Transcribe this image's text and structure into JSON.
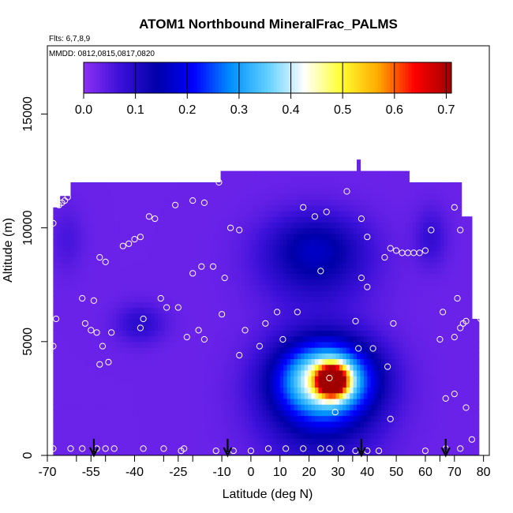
{
  "chart_data": {
    "type": "heatmap",
    "title": "ATOM1 Northbound MineralFrac_PALMS",
    "subtitle": "Flts: 6,7,8,9",
    "annotation": "MMDD: 0812,0815,0817,0820",
    "xlabel": "Latitude (deg N)",
    "ylabel": "Altitude (m)",
    "xlim": [
      -70,
      82
    ],
    "ylim": [
      0,
      18000
    ],
    "x_ticks": [
      "-70",
      "-55",
      "-40",
      "-25",
      "-10",
      "0",
      "10",
      "20",
      "30",
      "40",
      "50",
      "60",
      "70",
      "80"
    ],
    "x_tick_values": [
      -70,
      -55,
      -40,
      -25,
      -10,
      0,
      10,
      20,
      30,
      40,
      50,
      60,
      70,
      80
    ],
    "x_minor_ticks": [
      -60,
      -50,
      -30,
      -20,
      35,
      65
    ],
    "y_ticks": [
      "0",
      "5000",
      "10000",
      "15000"
    ],
    "y_tick_values": [
      0,
      5000,
      10000,
      15000
    ],
    "colorbar": {
      "ticks": [
        "0.0",
        "0.1",
        "0.2",
        "0.3",
        "0.4",
        "0.5",
        "0.6",
        "0.7"
      ],
      "tick_values": [
        0,
        0.1,
        0.2,
        0.3,
        0.4,
        0.5,
        0.6,
        0.7
      ],
      "min": 0,
      "max": 0.71,
      "stops": [
        "#8e30f5",
        "#3a10d8",
        "#0000a8",
        "#0000ff",
        "#0090ff",
        "#60d0ff",
        "#ffffff",
        "#ffff30",
        "#ffaa00",
        "#ff0000",
        "#a00000"
      ]
    },
    "field": {
      "background_value": 0.03,
      "coverage_ceiling": [
        {
          "x": -68,
          "y": 0
        },
        {
          "x": -68,
          "y": 10900
        },
        {
          "x": -66,
          "y": 10900
        },
        {
          "x": -66,
          "y": 11400
        },
        {
          "x": -62,
          "y": 11400
        },
        {
          "x": -62,
          "y": 12000
        },
        {
          "x": -10,
          "y": 12000
        },
        {
          "x": -10,
          "y": 12500
        },
        {
          "x": 37,
          "y": 12500
        },
        {
          "x": 37,
          "y": 13000
        },
        {
          "x": 38,
          "y": 13000
        },
        {
          "x": 38,
          "y": 12500
        },
        {
          "x": 55,
          "y": 12500
        },
        {
          "x": 55,
          "y": 12000
        },
        {
          "x": 73,
          "y": 12000
        },
        {
          "x": 73,
          "y": 10500
        },
        {
          "x": 76,
          "y": 10500
        },
        {
          "x": 76,
          "y": 6000
        },
        {
          "x": 79,
          "y": 6000
        },
        {
          "x": 79,
          "y": 500
        },
        {
          "x": 73,
          "y": 500
        },
        {
          "x": 73,
          "y": 0
        }
      ],
      "blobs": [
        {
          "x": 28,
          "y": 3300,
          "sx": 3.5,
          "sy": 450,
          "v": 0.62
        },
        {
          "x": 26,
          "y": 3400,
          "sx": 11,
          "sy": 1100,
          "v": 0.32
        },
        {
          "x": 24,
          "y": 2500,
          "sx": 14,
          "sy": 1900,
          "v": 0.14
        },
        {
          "x": 22,
          "y": 8500,
          "sx": 13,
          "sy": 1300,
          "v": 0.1
        },
        {
          "x": 22,
          "y": 9500,
          "sx": 11,
          "sy": 900,
          "v": 0.05
        },
        {
          "x": -38,
          "y": 5800,
          "sx": 6,
          "sy": 600,
          "v": 0.06
        },
        {
          "x": 62,
          "y": 9600,
          "sx": 4,
          "sy": 900,
          "v": 0.05
        },
        {
          "x": -63,
          "y": 9500,
          "sx": 4,
          "sy": 1000,
          "v": 0.03
        }
      ]
    },
    "flight_track_points": [
      {
        "x": -66,
        "y": 11000
      },
      {
        "x": -65,
        "y": 11100
      },
      {
        "x": -64,
        "y": 11200
      },
      {
        "x": -63,
        "y": 11350
      },
      {
        "x": -68,
        "y": 10200
      },
      {
        "x": -67,
        "y": 6000
      },
      {
        "x": -68,
        "y": 4800
      },
      {
        "x": -57,
        "y": 5800
      },
      {
        "x": -58,
        "y": 6900
      },
      {
        "x": -54,
        "y": 6800
      },
      {
        "x": -52,
        "y": 8700
      },
      {
        "x": -50,
        "y": 8500
      },
      {
        "x": -48,
        "y": 5400
      },
      {
        "x": -51,
        "y": 4800
      },
      {
        "x": -52,
        "y": 4000
      },
      {
        "x": -49,
        "y": 4100
      },
      {
        "x": -55,
        "y": 5500
      },
      {
        "x": -53,
        "y": 5400
      },
      {
        "x": -44,
        "y": 9200
      },
      {
        "x": -42,
        "y": 9300
      },
      {
        "x": -40,
        "y": 9500
      },
      {
        "x": -38,
        "y": 9600
      },
      {
        "x": -35,
        "y": 10500
      },
      {
        "x": -33,
        "y": 10400
      },
      {
        "x": -26,
        "y": 11000
      },
      {
        "x": -20,
        "y": 11200
      },
      {
        "x": -16,
        "y": 11100
      },
      {
        "x": -11,
        "y": 12000
      },
      {
        "x": -7,
        "y": 10000
      },
      {
        "x": -4,
        "y": 9900
      },
      {
        "x": -20,
        "y": 8000
      },
      {
        "x": -17,
        "y": 8300
      },
      {
        "x": -13,
        "y": 8300
      },
      {
        "x": -9,
        "y": 7800
      },
      {
        "x": -31,
        "y": 6900
      },
      {
        "x": -29,
        "y": 6500
      },
      {
        "x": -25,
        "y": 6500
      },
      {
        "x": -37,
        "y": 6000
      },
      {
        "x": -38,
        "y": 5600
      },
      {
        "x": -18,
        "y": 5500
      },
      {
        "x": -16,
        "y": 5100
      },
      {
        "x": -10,
        "y": 6200
      },
      {
        "x": -22,
        "y": 5200
      },
      {
        "x": -2,
        "y": 5500
      },
      {
        "x": 5,
        "y": 5800
      },
      {
        "x": 3,
        "y": 4800
      },
      {
        "x": 11,
        "y": 5100
      },
      {
        "x": -4,
        "y": 4400
      },
      {
        "x": 9,
        "y": 6300
      },
      {
        "x": 16,
        "y": 6300
      },
      {
        "x": 22,
        "y": 10500
      },
      {
        "x": 26,
        "y": 10700
      },
      {
        "x": 18,
        "y": 10900
      },
      {
        "x": 33,
        "y": 11600
      },
      {
        "x": 38,
        "y": 10400
      },
      {
        "x": 40,
        "y": 9600
      },
      {
        "x": 24,
        "y": 8100
      },
      {
        "x": 38,
        "y": 7800
      },
      {
        "x": 40,
        "y": 7400
      },
      {
        "x": 46,
        "y": 8700
      },
      {
        "x": 48,
        "y": 9100
      },
      {
        "x": 50,
        "y": 9000
      },
      {
        "x": 52,
        "y": 8900
      },
      {
        "x": 54,
        "y": 8900
      },
      {
        "x": 56,
        "y": 8900
      },
      {
        "x": 58,
        "y": 8900
      },
      {
        "x": 60,
        "y": 9000
      },
      {
        "x": 62,
        "y": 9900
      },
      {
        "x": 72,
        "y": 9900
      },
      {
        "x": 70,
        "y": 10900
      },
      {
        "x": 74,
        "y": 11800
      },
      {
        "x": 78,
        "y": 10100
      },
      {
        "x": 71,
        "y": 6900
      },
      {
        "x": 66,
        "y": 6300
      },
      {
        "x": 78,
        "y": 6400
      },
      {
        "x": 79,
        "y": 6000
      },
      {
        "x": 73,
        "y": 5800
      },
      {
        "x": 72,
        "y": 5600
      },
      {
        "x": 74,
        "y": 5900
      },
      {
        "x": 70,
        "y": 5200
      },
      {
        "x": 65,
        "y": 5100
      },
      {
        "x": 49,
        "y": 5800
      },
      {
        "x": 36,
        "y": 5900
      },
      {
        "x": 37,
        "y": 4700
      },
      {
        "x": 42,
        "y": 4700
      },
      {
        "x": 47,
        "y": 3900
      },
      {
        "x": 27,
        "y": 3400
      },
      {
        "x": 29,
        "y": 1900
      },
      {
        "x": 48,
        "y": 1600
      },
      {
        "x": 67,
        "y": 2500
      },
      {
        "x": 70,
        "y": 2700
      },
      {
        "x": 74,
        "y": 2100
      },
      {
        "x": 76,
        "y": 700
      },
      {
        "x": 80,
        "y": 700
      },
      {
        "x": 72,
        "y": 300
      },
      {
        "x": 67,
        "y": 300
      },
      {
        "x": 60,
        "y": 200
      },
      {
        "x": 44,
        "y": 200
      },
      {
        "x": 40,
        "y": 200
      },
      {
        "x": 36,
        "y": 200
      },
      {
        "x": 31,
        "y": 300
      },
      {
        "x": 27,
        "y": 300
      },
      {
        "x": 24,
        "y": 300
      },
      {
        "x": 18,
        "y": 300
      },
      {
        "x": 12,
        "y": 300
      },
      {
        "x": 6,
        "y": 300
      },
      {
        "x": 0,
        "y": 200
      },
      {
        "x": -6,
        "y": 200
      },
      {
        "x": -12,
        "y": 200
      },
      {
        "x": -23,
        "y": 300
      },
      {
        "x": -24,
        "y": 200
      },
      {
        "x": -30,
        "y": 300
      },
      {
        "x": -37,
        "y": 300
      },
      {
        "x": -47,
        "y": 300
      },
      {
        "x": -50,
        "y": 300
      },
      {
        "x": -53,
        "y": 300
      },
      {
        "x": -58,
        "y": 300
      },
      {
        "x": -62,
        "y": 300
      },
      {
        "x": -68,
        "y": 300
      }
    ],
    "arrow_markers_x": [
      -54,
      -8,
      38,
      67
    ]
  }
}
